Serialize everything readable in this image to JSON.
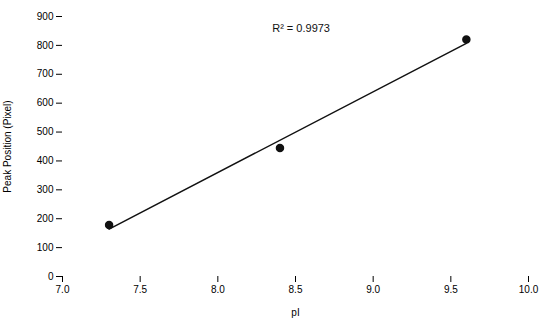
{
  "chart_data": {
    "type": "scatter",
    "xlabel": "pI",
    "ylabel": "Peak Position (Pixel)",
    "xlim": [
      7.0,
      10.0
    ],
    "ylim": [
      0,
      900
    ],
    "xticks": [
      {
        "value": 7,
        "label": "7.0"
      },
      7.5,
      {
        "value": 8,
        "label": "8.0"
      },
      8.5,
      {
        "value": 9,
        "label": "9.0"
      },
      9.5,
      {
        "value": 10,
        "label": "10.0"
      }
    ],
    "yticks": [
      0,
      100,
      200,
      300,
      400,
      500,
      600,
      700,
      800,
      900
    ],
    "grid": false,
    "series": [
      {
        "type": "scatter",
        "x": [
          7.3,
          8.4,
          9.6
        ],
        "values": [
          178,
          445,
          820
        ],
        "color": "#111111",
        "marker": "circle"
      },
      {
        "type": "line",
        "x": [
          7.3,
          9.6
        ],
        "values": [
          164.08,
          807.24
        ],
        "color": "#111111",
        "line_style": "solid"
      }
    ],
    "annotations": [
      {
        "text": "R² = 0.9973",
        "x": 8.35,
        "y": 875,
        "color": "#111111"
      }
    ]
  }
}
